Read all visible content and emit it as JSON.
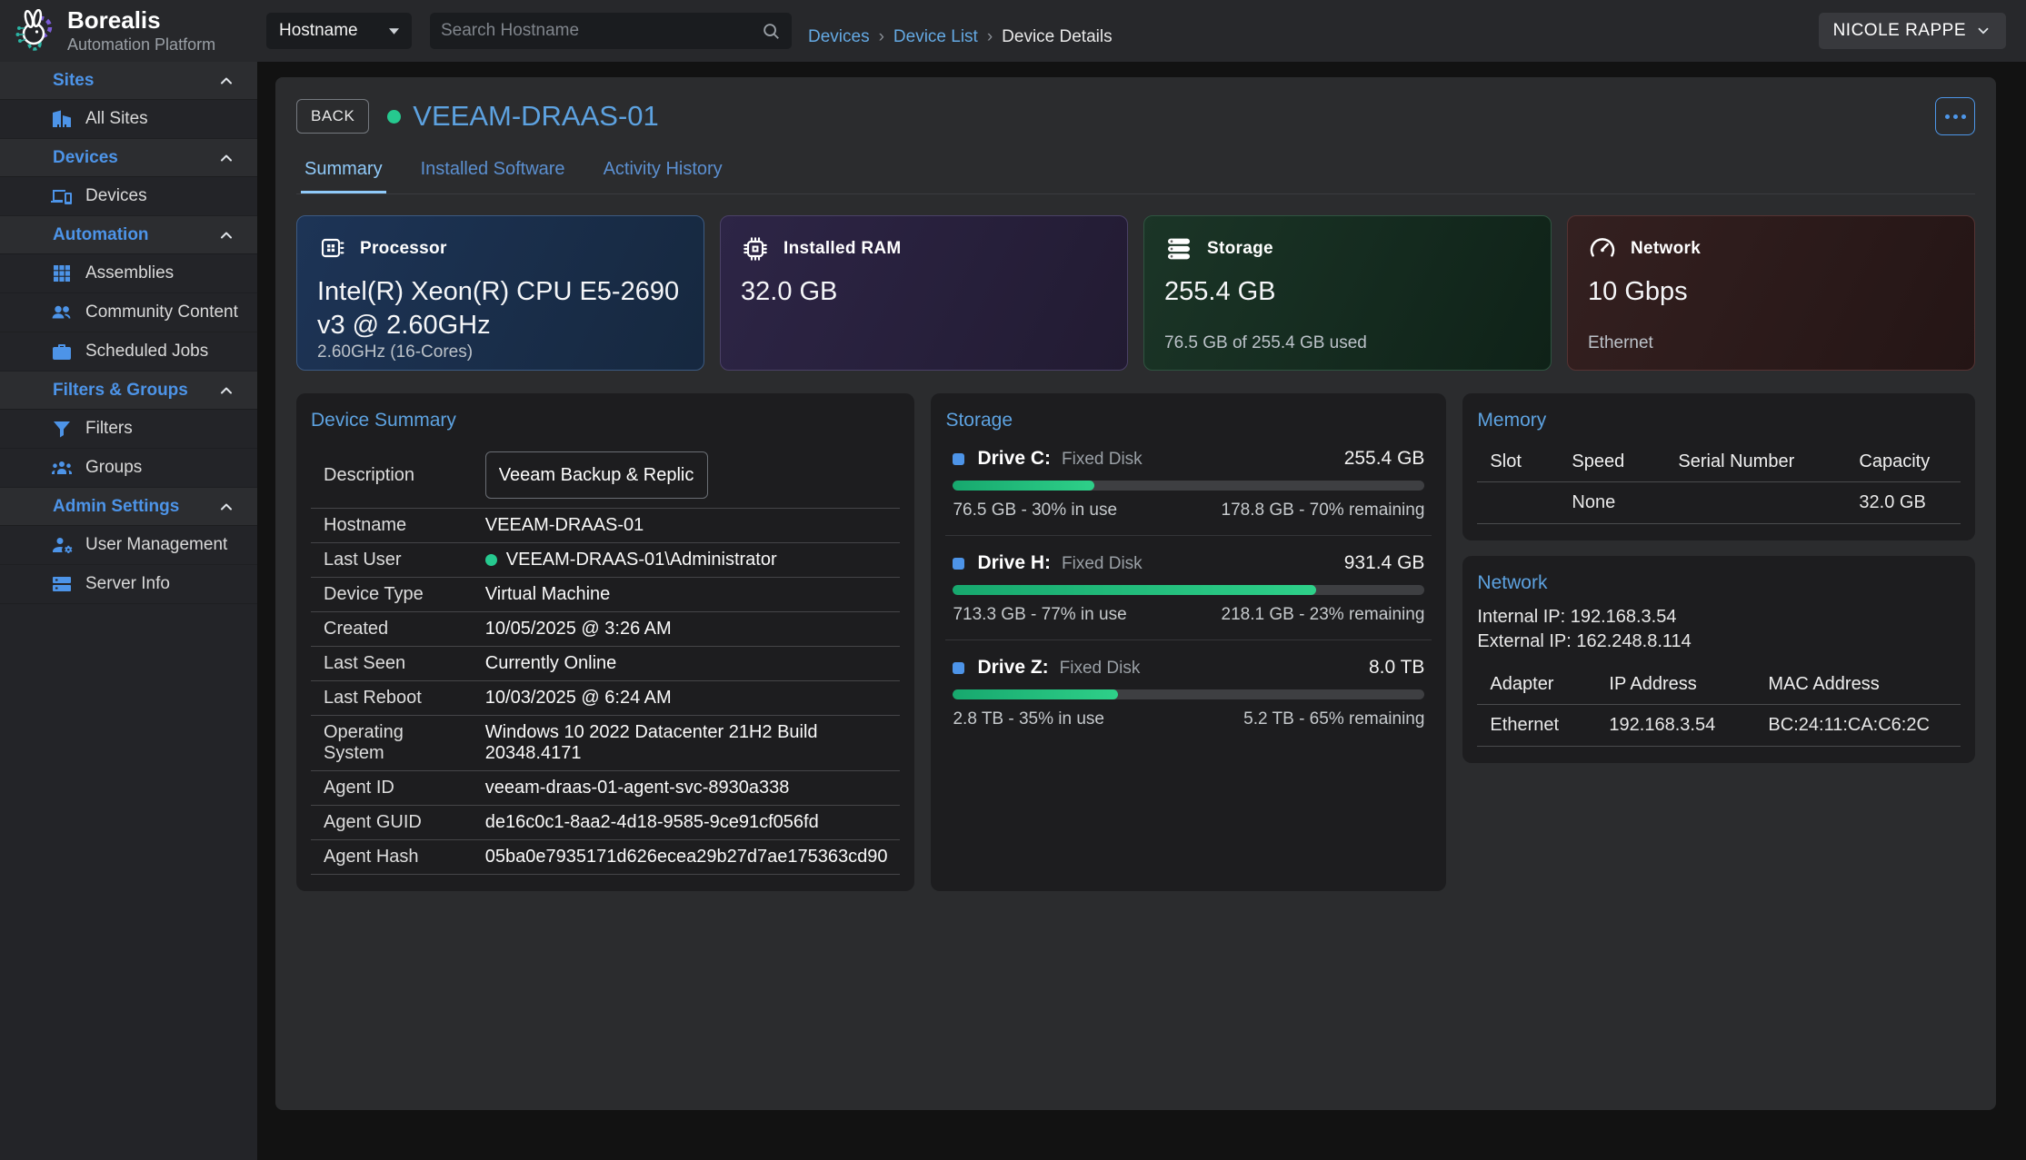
{
  "brand": {
    "name": "Borealis",
    "subtitle": "Automation Platform"
  },
  "topbar": {
    "filter_dropdown": "Hostname",
    "search_placeholder": "Search Hostname",
    "breadcrumbs": [
      {
        "label": "Devices",
        "link": true
      },
      {
        "label": "Device List",
        "link": true
      },
      {
        "label": "Device Details",
        "link": false
      }
    ],
    "user_menu": "NICOLE RAPPE"
  },
  "sidebar": {
    "sections": [
      {
        "label": "Sites",
        "items": [
          {
            "icon": "building-icon",
            "label": "All Sites"
          }
        ]
      },
      {
        "label": "Devices",
        "items": [
          {
            "icon": "devices-icon",
            "label": "Devices"
          }
        ]
      },
      {
        "label": "Automation",
        "items": [
          {
            "icon": "grid-icon",
            "label": "Assemblies"
          },
          {
            "icon": "people-icon",
            "label": "Community Content"
          },
          {
            "icon": "briefcase-icon",
            "label": "Scheduled Jobs"
          }
        ]
      },
      {
        "label": "Filters & Groups",
        "items": [
          {
            "icon": "filter-icon",
            "label": "Filters"
          },
          {
            "icon": "groups-icon",
            "label": "Groups"
          }
        ]
      },
      {
        "label": "Admin Settings",
        "items": [
          {
            "icon": "user-gear-icon",
            "label": "User Management"
          },
          {
            "icon": "server-icon",
            "label": "Server Info"
          }
        ]
      }
    ]
  },
  "device": {
    "back_label": "BACK",
    "name": "VEEAM-DRAAS-01",
    "tabs": [
      {
        "label": "Summary",
        "active": true
      },
      {
        "label": "Installed Software",
        "active": false
      },
      {
        "label": "Activity History",
        "active": false
      }
    ]
  },
  "stat_cards": [
    {
      "icon": "cpu-icon",
      "label": "Processor",
      "value": "Intel(R) Xeon(R) CPU E5-2690 v3 @ 2.60GHz",
      "subtitle": "2.60GHz (16-Cores)",
      "theme": "blue"
    },
    {
      "icon": "ram-icon",
      "label": "Installed RAM",
      "value": "32.0 GB",
      "subtitle": "",
      "theme": "purple"
    },
    {
      "icon": "storage-icon",
      "label": "Storage",
      "value": "255.4 GB",
      "subtitle": "76.5 GB of 255.4 GB used",
      "theme": "green"
    },
    {
      "icon": "network-icon",
      "label": "Network",
      "value": "10 Gbps",
      "subtitle": "Ethernet",
      "theme": "red"
    }
  ],
  "device_summary": {
    "title": "Device Summary",
    "description_label": "Description",
    "description_value": "Veeam Backup & Replication",
    "rows": [
      {
        "label": "Hostname",
        "value": "VEEAM-DRAAS-01",
        "dot": false
      },
      {
        "label": "Last User",
        "value": "VEEAM-DRAAS-01\\Administrator",
        "dot": true
      },
      {
        "label": "Device Type",
        "value": "Virtual Machine",
        "dot": false
      },
      {
        "label": "Created",
        "value": "10/05/2025 @ 3:26 AM",
        "dot": false
      },
      {
        "label": "Last Seen",
        "value": "Currently Online",
        "dot": false
      },
      {
        "label": "Last Reboot",
        "value": "10/03/2025 @ 6:24 AM",
        "dot": false
      },
      {
        "label": "Operating System",
        "value": "Windows 10 2022 Datacenter 21H2 Build 20348.4171",
        "dot": false
      },
      {
        "label": "Agent ID",
        "value": "veeam-draas-01-agent-svc-8930a338",
        "dot": false
      },
      {
        "label": "Agent GUID",
        "value": "de16c0c1-8aa2-4d18-9585-9ce91cf056fd",
        "dot": false
      },
      {
        "label": "Agent Hash",
        "value": "05ba0e7935171d626ecea29b27d7ae175363cd90",
        "dot": false
      }
    ]
  },
  "storage_panel": {
    "title": "Storage",
    "drives": [
      {
        "name": "Drive C:",
        "type": "Fixed Disk",
        "size": "255.4 GB",
        "percent": 30,
        "used": "76.5 GB - 30% in use",
        "remaining": "178.8 GB - 70% remaining"
      },
      {
        "name": "Drive H:",
        "type": "Fixed Disk",
        "size": "931.4 GB",
        "percent": 77,
        "used": "713.3 GB - 77% in use",
        "remaining": "218.1 GB - 23% remaining"
      },
      {
        "name": "Drive Z:",
        "type": "Fixed Disk",
        "size": "8.0 TB",
        "percent": 35,
        "used": "2.8 TB - 35% in use",
        "remaining": "5.2 TB - 65% remaining"
      }
    ]
  },
  "memory_panel": {
    "title": "Memory",
    "columns": [
      "Slot",
      "Speed",
      "Serial Number",
      "Capacity"
    ],
    "rows": [
      [
        "",
        "None",
        "",
        "32.0 GB"
      ]
    ]
  },
  "network_panel": {
    "title": "Network",
    "internal_ip": "Internal IP: 192.168.3.54",
    "external_ip": "External IP: 162.248.8.114",
    "columns": [
      "Adapter",
      "IP Address",
      "MAC Address"
    ],
    "rows": [
      [
        "Ethernet",
        "192.168.3.54",
        "BC:24:11:CA:C6:2C"
      ]
    ]
  },
  "colors": {
    "accent_blue": "#4d94e8",
    "link_blue": "#64a9e3",
    "title_blue": "#5da2e0",
    "online_green": "#26c98f",
    "progress_green_start": "#17a86e",
    "progress_green_end": "#2ed089"
  }
}
